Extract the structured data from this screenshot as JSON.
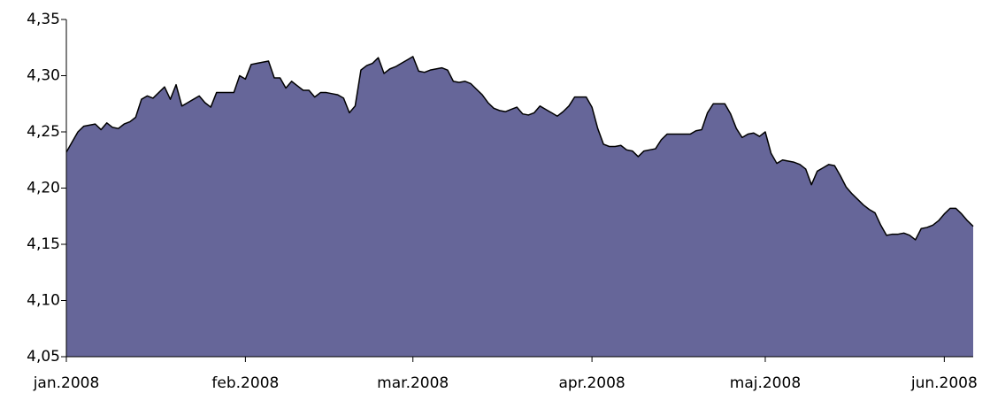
{
  "chart_data": {
    "type": "area",
    "categories": [
      "jan.2008",
      null,
      null,
      null,
      null,
      null,
      null,
      null,
      null,
      null,
      null,
      null,
      null,
      null,
      null,
      null,
      null,
      null,
      null,
      null,
      null,
      null,
      null,
      null,
      null,
      null,
      null,
      null,
      null,
      null,
      null,
      "feb.2008",
      null,
      null,
      null,
      null,
      null,
      null,
      null,
      null,
      null,
      null,
      null,
      null,
      null,
      null,
      null,
      null,
      null,
      null,
      null,
      null,
      null,
      null,
      null,
      null,
      null,
      null,
      null,
      null,
      "mar.2008",
      null,
      null,
      null,
      null,
      null,
      null,
      null,
      null,
      null,
      null,
      null,
      null,
      null,
      null,
      null,
      null,
      null,
      null,
      null,
      null,
      null,
      null,
      null,
      null,
      null,
      null,
      null,
      null,
      null,
      null,
      "apr.2008",
      null,
      null,
      null,
      null,
      null,
      null,
      null,
      null,
      null,
      null,
      null,
      null,
      null,
      null,
      null,
      null,
      null,
      null,
      null,
      null,
      null,
      null,
      null,
      null,
      null,
      null,
      null,
      null,
      null,
      "maj.2008",
      null,
      null,
      null,
      null,
      null,
      null,
      null,
      null,
      null,
      null,
      null,
      null,
      null,
      null,
      null,
      null,
      null,
      null,
      null,
      null,
      null,
      null,
      null,
      null,
      null,
      null,
      null,
      null,
      null,
      null,
      "jun.2008",
      null,
      null,
      null,
      null,
      null
    ],
    "values": [
      4.232,
      4.241,
      4.25,
      4.255,
      4.256,
      4.257,
      4.252,
      4.258,
      4.254,
      4.253,
      4.257,
      4.259,
      4.263,
      4.279,
      4.282,
      4.28,
      4.285,
      4.29,
      4.279,
      4.292,
      4.273,
      4.276,
      4.279,
      4.282,
      4.276,
      4.272,
      4.285,
      4.285,
      4.285,
      4.285,
      4.3,
      4.297,
      4.31,
      4.311,
      4.312,
      4.313,
      4.298,
      4.298,
      4.289,
      4.295,
      4.291,
      4.287,
      4.287,
      4.281,
      4.285,
      4.285,
      4.284,
      4.283,
      4.28,
      4.267,
      4.273,
      4.305,
      4.309,
      4.311,
      4.316,
      4.302,
      4.306,
      4.308,
      4.311,
      4.314,
      4.317,
      4.304,
      4.303,
      4.305,
      4.306,
      4.307,
      4.305,
      4.295,
      4.294,
      4.295,
      4.293,
      4.288,
      4.283,
      4.276,
      4.271,
      4.269,
      4.268,
      4.27,
      4.272,
      4.266,
      4.265,
      4.267,
      4.273,
      4.27,
      4.267,
      4.264,
      4.268,
      4.273,
      4.281,
      4.281,
      4.281,
      4.272,
      4.253,
      4.239,
      4.237,
      4.237,
      4.238,
      4.234,
      4.233,
      4.228,
      4.233,
      4.234,
      4.235,
      4.243,
      4.248,
      4.248,
      4.248,
      4.248,
      4.248,
      4.251,
      4.252,
      4.267,
      4.275,
      4.275,
      4.275,
      4.266,
      4.253,
      4.245,
      4.248,
      4.249,
      4.246,
      4.25,
      4.231,
      4.222,
      4.225,
      4.224,
      4.223,
      4.221,
      4.217,
      4.203,
      4.215,
      4.218,
      4.221,
      4.22,
      4.211,
      4.201,
      4.195,
      4.19,
      4.185,
      4.181,
      4.178,
      4.167,
      4.158,
      4.159,
      4.159,
      4.16,
      4.158,
      4.154,
      4.164,
      4.165,
      4.167,
      4.171,
      4.177,
      4.182,
      4.182,
      4.177,
      4.171,
      4.166
    ],
    "color": "#666699",
    "ylim": [
      4.05,
      4.35
    ],
    "yticks": [
      {
        "value": 4.05,
        "label": "4,05"
      },
      {
        "value": 4.1,
        "label": "4,10"
      },
      {
        "value": 4.15,
        "label": "4,15"
      },
      {
        "value": 4.2,
        "label": "4,20"
      },
      {
        "value": 4.25,
        "label": "4,25"
      },
      {
        "value": 4.3,
        "label": "4,30"
      },
      {
        "value": 4.35,
        "label": "4,35"
      }
    ]
  }
}
